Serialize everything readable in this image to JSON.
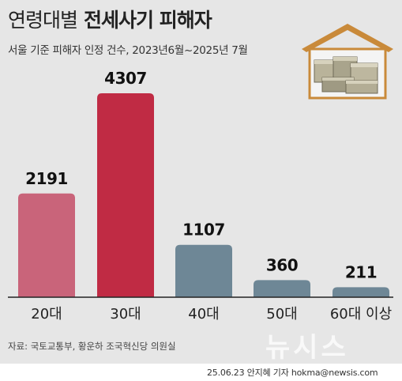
{
  "header": {
    "title_part1": "연령대별",
    "title_part2": "전세사기 피해자",
    "subtitle": "서울 기준 피해자 인정 건수, 2023년6월~2025년 7월"
  },
  "chart_data": {
    "type": "bar",
    "title": "연령대별 전세사기 피해자",
    "subtitle": "서울 기준 피해자 인정 건수, 2023년6월~2025년 7월",
    "categories": [
      "20대",
      "30대",
      "40대",
      "50대",
      "60대 이상"
    ],
    "values": [
      2191,
      4307,
      1107,
      360,
      211
    ],
    "colors": [
      "#c9647a",
      "#c02b44",
      "#6e8796",
      "#6e8796",
      "#6e8796"
    ],
    "xlabel": "",
    "ylabel": "",
    "ylim": [
      0,
      4307
    ],
    "grid": false,
    "legend": "none"
  },
  "footer": {
    "source": "자료: 국토교통부, 황운하 조국혁신당 의원실",
    "watermark": "뉴시스",
    "credit": "25.06.23 안지혜 기자 hokma@newsis.com"
  },
  "colors": {
    "background": "#e6e6e6",
    "house_roof": "#c98a3a",
    "baseline": "#222222"
  },
  "icons": {
    "house": "house-with-money-icon"
  }
}
